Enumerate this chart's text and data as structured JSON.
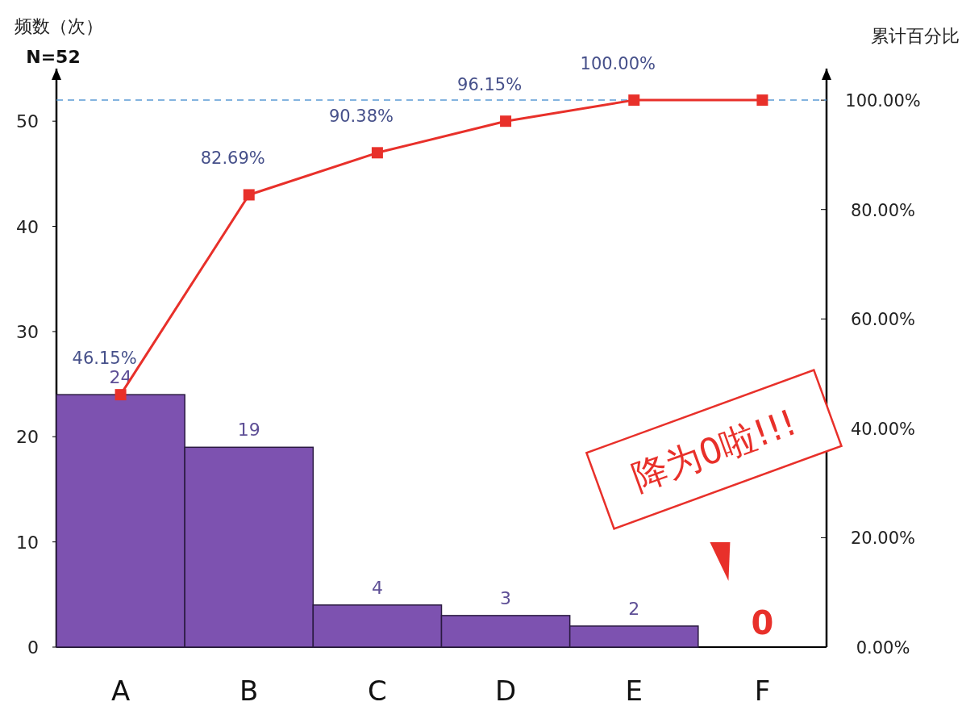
{
  "chart_data": {
    "type": "bar",
    "categories": [
      "A",
      "B",
      "C",
      "D",
      "E",
      "F"
    ],
    "ylabel": "频数（次）",
    "y2label": "累计百分比",
    "ylim": [
      0,
      55
    ],
    "yticks": [
      0,
      10,
      20,
      30,
      40,
      50
    ],
    "y2lim": [
      0,
      105.77
    ],
    "y2ticks": [
      {
        "value": 0,
        "label": "0.00%"
      },
      {
        "value": 20,
        "label": "20.00%"
      },
      {
        "value": 40,
        "label": "40.00%"
      },
      {
        "value": 60,
        "label": "60.00%"
      },
      {
        "value": 80,
        "label": "80.00%"
      },
      {
        "value": 100,
        "label": "100.00%"
      }
    ],
    "series": [
      {
        "color": "#7d52b0",
        "values": [
          24,
          19,
          4,
          3,
          2,
          0
        ],
        "value_labels": [
          "24",
          "19",
          "4",
          "3",
          "2",
          "0"
        ]
      },
      {
        "type": "line",
        "axis": "y2",
        "color": "#e8302a",
        "marker": "square",
        "values": [
          46.15,
          82.69,
          90.38,
          96.15,
          100,
          100
        ],
        "value_labels": [
          "46.15%",
          "82.69%",
          "90.38%",
          "96.15%",
          "100.00%",
          null
        ]
      }
    ],
    "ref_lines": [
      {
        "axis": "y",
        "value": 52,
        "color": "#5b9bd5",
        "line_style": "dashed"
      }
    ],
    "annotations": [
      "N=52",
      "降为0啦!!!"
    ]
  }
}
